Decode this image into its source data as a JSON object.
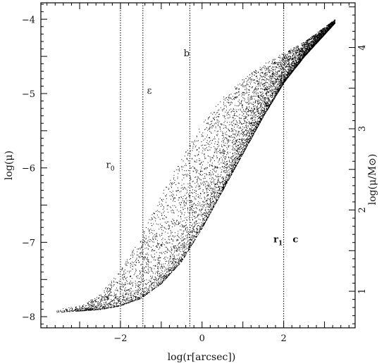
{
  "chart_data": {
    "type": "scatter",
    "xlabel": "log(r[arcsec])",
    "ylabel": "log(μ)",
    "y2label": "log(μ/M⊙)",
    "xlim": [
      -3.95,
      3.75
    ],
    "ylim": [
      -8.15,
      -3.78
    ],
    "y2lim": [
      0.55,
      4.55
    ],
    "x_ticks": [
      -2,
      0,
      2
    ],
    "x_tick_labels": [
      "−2",
      "0",
      "2"
    ],
    "y_ticks": [
      -8,
      -7,
      -6,
      -5,
      -4
    ],
    "y_tick_labels": [
      "−8",
      "−7",
      "−6",
      "−5",
      "−4"
    ],
    "y2_ticks": [
      1,
      2,
      3,
      4
    ],
    "y2_tick_labels": [
      "1",
      "2",
      "3",
      "4"
    ],
    "grid": false,
    "legend": "none",
    "marker_color": "#000000",
    "vertical_lines": [
      {
        "name": "r0",
        "x": -2.0
      },
      {
        "name": "epsilon",
        "x": -1.45
      },
      {
        "name": "b",
        "x": -0.3
      },
      {
        "name": "c",
        "x": 2.0
      }
    ],
    "annotations": [
      {
        "id": "r0",
        "main": "r",
        "sub": "0",
        "x": -2.35,
        "y": -6.0,
        "bold": false
      },
      {
        "id": "epsilon",
        "main": "ε",
        "sub": "",
        "x": -1.35,
        "y": -5.0,
        "bold": false
      },
      {
        "id": "b",
        "main": "b",
        "sub": "",
        "x": -0.45,
        "y": -4.5,
        "bold": false
      },
      {
        "id": "r1",
        "main": "r",
        "sub": "1",
        "x": 1.75,
        "y": -7.0,
        "bold": true
      },
      {
        "id": "c",
        "main": "c",
        "sub": "",
        "x": 2.22,
        "y": -7.0,
        "bold": true
      }
    ],
    "distribution": {
      "x_range": [
        -3.6,
        3.25
      ],
      "lower_envelope": [
        [
          -3.6,
          -7.94
        ],
        [
          -3.0,
          -7.92
        ],
        [
          -2.5,
          -7.9
        ],
        [
          -2.0,
          -7.85
        ],
        [
          -1.5,
          -7.75
        ],
        [
          -1.0,
          -7.55
        ],
        [
          -0.5,
          -7.25
        ],
        [
          0.0,
          -6.8
        ],
        [
          0.5,
          -6.3
        ],
        [
          1.0,
          -5.8
        ],
        [
          1.5,
          -5.3
        ],
        [
          2.0,
          -4.85
        ],
        [
          2.5,
          -4.5
        ],
        [
          3.0,
          -4.2
        ],
        [
          3.25,
          -4.05
        ]
      ],
      "upper_envelope": [
        [
          -3.6,
          -7.9
        ],
        [
          -3.0,
          -7.85
        ],
        [
          -2.5,
          -7.7
        ],
        [
          -2.0,
          -7.35
        ],
        [
          -1.5,
          -6.9
        ],
        [
          -1.0,
          -6.35
        ],
        [
          -0.5,
          -5.85
        ],
        [
          0.0,
          -5.4
        ],
        [
          0.5,
          -5.05
        ],
        [
          1.0,
          -4.8
        ],
        [
          1.5,
          -4.6
        ],
        [
          2.0,
          -4.45
        ],
        [
          2.5,
          -4.3
        ],
        [
          3.0,
          -4.1
        ],
        [
          3.25,
          -4.0
        ]
      ],
      "point_count": 16000
    }
  }
}
